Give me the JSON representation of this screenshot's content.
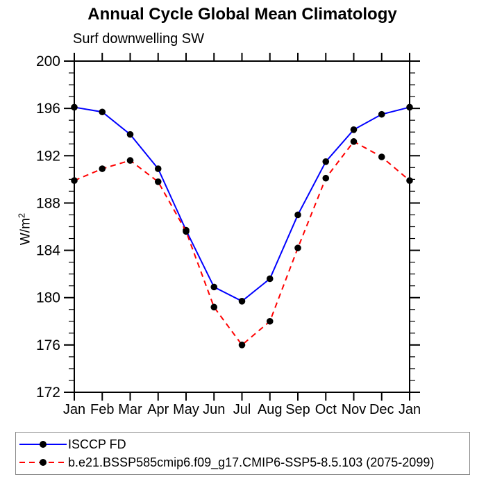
{
  "chart_data": {
    "type": "line",
    "title": "Annual Cycle Global Mean Climatology",
    "subtitle": "Surf downwelling SW",
    "ylabel": "W/m^2",
    "ylabel_base": "W/m",
    "ylabel_sup": "2",
    "categories": [
      "Jan",
      "Feb",
      "Mar",
      "Apr",
      "May",
      "Jun",
      "Jul",
      "Aug",
      "Sep",
      "Oct",
      "Nov",
      "Dec",
      "Jan"
    ],
    "ylim": [
      172,
      200
    ],
    "yticks": [
      172,
      176,
      180,
      184,
      188,
      192,
      196,
      200
    ],
    "y_minor_tick_step": 1,
    "grid": false,
    "axis_color": "#000000",
    "marker_shape": "filled-circle",
    "legend_position": "bottom-left-box",
    "series": [
      {
        "name": "ISCCP FD",
        "color": "#0000ff",
        "line_style": "solid",
        "marker_color": "#000000",
        "values": [
          196.1,
          195.7,
          193.8,
          190.9,
          185.7,
          180.9,
          179.7,
          181.6,
          187.0,
          191.5,
          194.2,
          195.5,
          196.1
        ]
      },
      {
        "name": "b.e21.BSSP585cmip6.f09_g17.CMIP6-SSP5-8.5.103 (2075-2099)",
        "color": "#ff0000",
        "line_style": "dashed",
        "marker_color": "#000000",
        "values": [
          189.9,
          190.9,
          191.6,
          189.8,
          185.6,
          179.2,
          176.0,
          178.0,
          184.2,
          190.1,
          193.2,
          191.9,
          189.9
        ]
      }
    ]
  }
}
